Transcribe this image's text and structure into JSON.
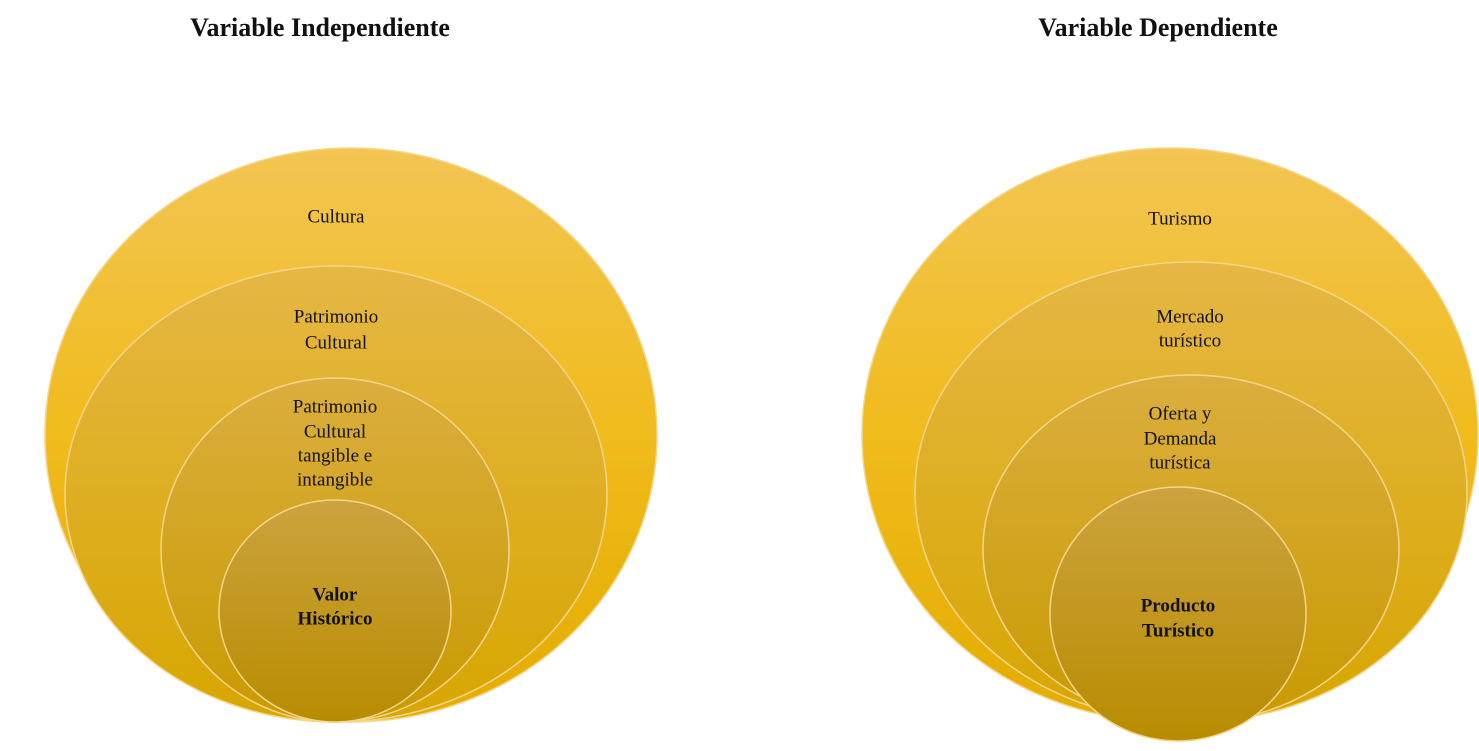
{
  "diagrams": [
    {
      "title": "Variable Independiente",
      "layers": [
        {
          "lines": [
            "Cultura"
          ]
        },
        {
          "lines": [
            "Patrimonio",
            "Cultural"
          ]
        },
        {
          "lines": [
            "Patrimonio",
            "Cultural",
            "tangible e",
            "intangible"
          ]
        },
        {
          "lines": [
            "Valor",
            "Histórico"
          ]
        }
      ]
    },
    {
      "title": "Variable Dependiente",
      "layers": [
        {
          "lines": [
            "Turismo"
          ]
        },
        {
          "lines": [
            "Mercado",
            "turístico"
          ]
        },
        {
          "lines": [
            "Oferta y",
            "Demanda",
            "turística"
          ]
        },
        {
          "lines": [
            "Producto",
            "Turístico"
          ]
        }
      ]
    }
  ]
}
